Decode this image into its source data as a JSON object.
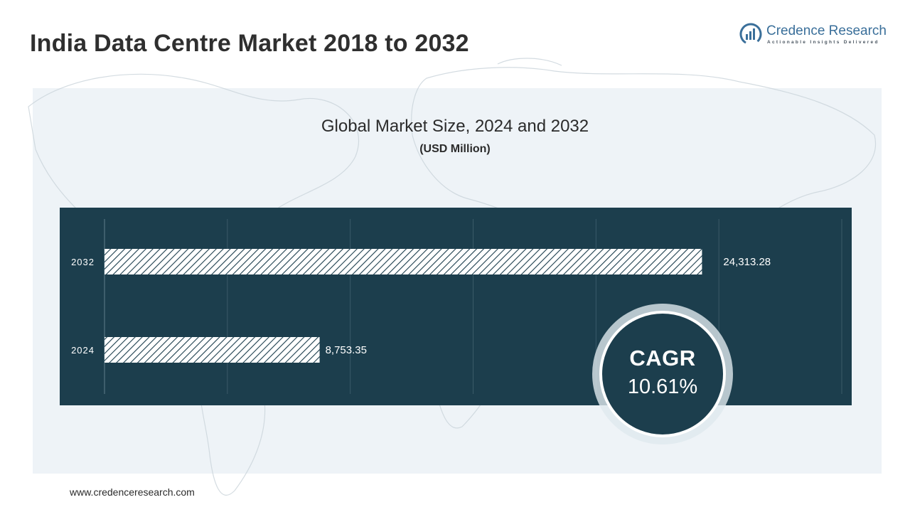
{
  "header": {
    "title": "India Data Centre Market 2018 to 2032"
  },
  "logo": {
    "name": "Credence Research",
    "tagline": "Actionable Insights Delivered"
  },
  "colors": {
    "panel_bg": "#eef3f7",
    "chart_bg": "#1c3e4d",
    "bar_fill": "#ffffff",
    "bar_hatch": "#1c3e4d",
    "logo_blue": "#3a6f9a"
  },
  "chart_data": {
    "type": "bar",
    "orientation": "horizontal",
    "title": "Global Market Size, 2024 and 2032",
    "subtitle": "(USD Million)",
    "categories": [
      "2032",
      "2024"
    ],
    "values": [
      24313.28,
      8753.35
    ],
    "value_labels": [
      "24,313.28",
      "8,753.35"
    ],
    "xlim": [
      0,
      30000
    ],
    "grid": true
  },
  "cagr": {
    "label": "CAGR",
    "value": "10.61%"
  },
  "footer": {
    "url": "www.credenceresearch.com"
  }
}
